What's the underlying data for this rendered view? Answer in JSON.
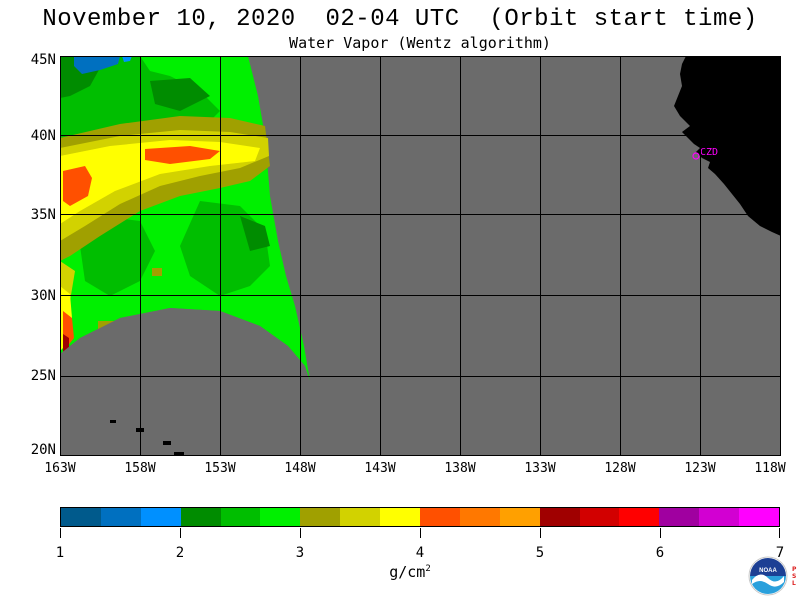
{
  "header": {
    "title": "November 10, 2020  02-04 UTC  (Orbit start time)",
    "subtitle": "Water Vapor (Wentz algorithm)"
  },
  "map": {
    "lat_labels": [
      "45N",
      "40N",
      "35N",
      "30N",
      "25N",
      "20N"
    ],
    "lon_labels": [
      "163W",
      "158W",
      "153W",
      "148W",
      "143W",
      "138W",
      "133W",
      "128W",
      "123W",
      "118W"
    ],
    "station_label": "CZD",
    "colors": {
      "no_data": "#6b6b6b",
      "land": "#000000",
      "grid": "#000000",
      "station": "#ff00ff"
    }
  },
  "colorbar": {
    "colors": [
      "#005a8c",
      "#0070c0",
      "#0090ff",
      "#008c00",
      "#00be00",
      "#00f000",
      "#a0a000",
      "#d2d200",
      "#ffff00",
      "#ff5000",
      "#ff7800",
      "#ffa000",
      "#a00000",
      "#d20000",
      "#ff0000",
      "#a000a0",
      "#d200d2",
      "#ff00ff"
    ],
    "tick_labels": [
      "1",
      "2",
      "3",
      "4",
      "5",
      "6",
      "7"
    ],
    "units": "g/cm",
    "units_superscript": "2"
  },
  "logo": {
    "name": "NOAA",
    "psl_text": "PSL"
  }
}
